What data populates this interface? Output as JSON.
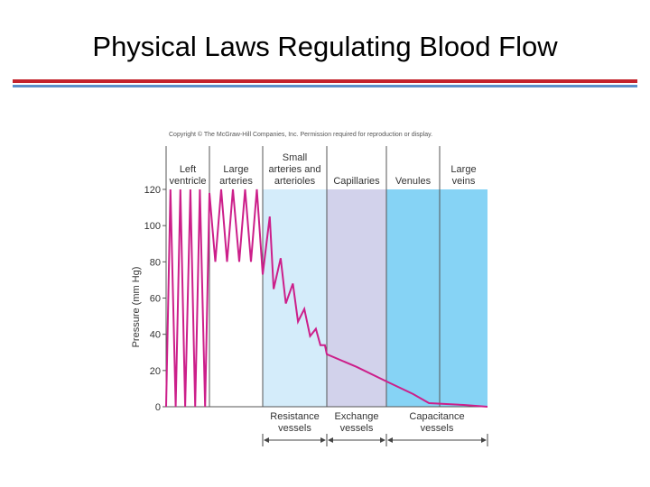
{
  "slide": {
    "title": "Physical Laws Regulating Blood Flow",
    "copyright": "Copyright © The McGraw-Hill Companies, Inc. Permission required for reproduction or display."
  },
  "colors": {
    "pressure_line": "#cc1f8a",
    "resistance_fill": "#d4ecfa",
    "exchange_fill": "#d2d2eb",
    "capacitance_fill": "#86d3f5"
  },
  "chart_data": {
    "type": "line",
    "ylabel": "Pressure (mm Hg)",
    "ylim": [
      0,
      120
    ],
    "yticks": [
      0,
      20,
      40,
      60,
      80,
      100,
      120
    ],
    "segments": [
      {
        "label": [
          "Left",
          "ventricle"
        ],
        "start": 0,
        "end": 1
      },
      {
        "label": [
          "Large",
          "arteries"
        ],
        "start": 1,
        "end": 2
      },
      {
        "label": [
          "Small",
          "arteries and",
          "arterioles"
        ],
        "start": 2,
        "end": 3
      },
      {
        "label": [
          "Capillaries"
        ],
        "start": 3,
        "end": 4
      },
      {
        "label": [
          "Venules"
        ],
        "start": 4,
        "end": 5
      },
      {
        "label": [
          "Large",
          "veins"
        ],
        "start": 5,
        "end": 6
      }
    ],
    "groups": [
      {
        "label": [
          "Resistance",
          "vessels"
        ],
        "start": 2,
        "end": 3,
        "fill": "resistance"
      },
      {
        "label": [
          "Exchange",
          "vessels"
        ],
        "start": 3,
        "end": 4,
        "fill": "exchange"
      },
      {
        "label": [
          "Capacitance",
          "vessels"
        ],
        "start": 4,
        "end": 6,
        "fill": "capacitance"
      }
    ],
    "series": [
      {
        "points": [
          [
            0.0,
            0
          ],
          [
            0.1,
            120
          ],
          [
            0.22,
            0
          ],
          [
            0.33,
            120
          ],
          [
            0.44,
            0
          ],
          [
            0.56,
            120
          ],
          [
            0.67,
            0
          ],
          [
            0.78,
            120
          ],
          [
            0.9,
            0
          ],
          [
            1.0,
            118
          ],
          [
            1.11,
            80
          ],
          [
            1.22,
            120
          ],
          [
            1.33,
            80
          ],
          [
            1.44,
            120
          ],
          [
            1.56,
            80
          ],
          [
            1.67,
            120
          ],
          [
            1.78,
            80
          ],
          [
            1.89,
            120
          ],
          [
            2.0,
            73
          ],
          [
            2.11,
            105
          ],
          [
            2.17,
            65
          ],
          [
            2.28,
            82
          ],
          [
            2.36,
            57
          ],
          [
            2.47,
            68
          ],
          [
            2.55,
            47
          ],
          [
            2.65,
            54
          ],
          [
            2.74,
            39
          ],
          [
            2.83,
            43
          ],
          [
            2.9,
            34
          ],
          [
            2.97,
            34
          ],
          [
            3.0,
            29
          ],
          [
            3.5,
            22
          ],
          [
            4.0,
            14
          ],
          [
            4.5,
            7
          ],
          [
            4.8,
            2
          ],
          [
            5.5,
            1
          ],
          [
            6.0,
            0
          ]
        ]
      }
    ]
  }
}
